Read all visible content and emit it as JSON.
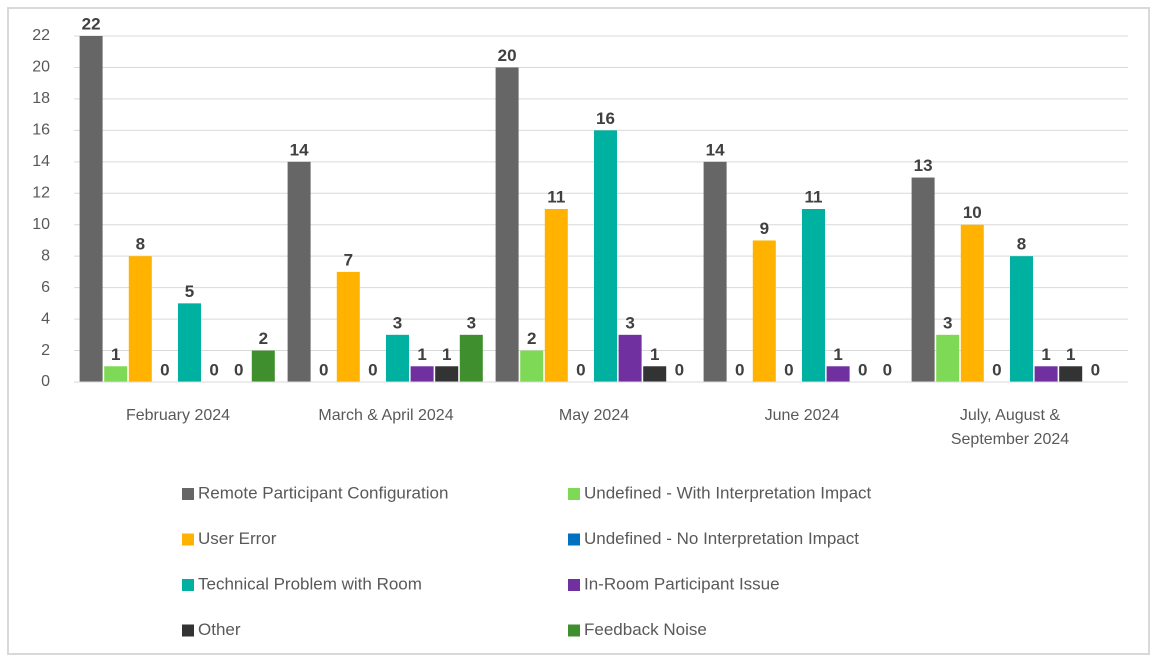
{
  "chart_data": {
    "type": "bar",
    "categories": [
      "February 2024",
      "March & April 2024",
      "May 2024",
      "June 2024",
      "July, August & September 2024"
    ],
    "series": [
      {
        "name": "Remote Participant Configuration",
        "color": "#666666",
        "values": [
          22,
          14,
          20,
          14,
          13
        ]
      },
      {
        "name": "Undefined - With Interpretation Impact",
        "color": "#7ed957",
        "values": [
          1,
          0,
          2,
          0,
          3
        ]
      },
      {
        "name": "User Error",
        "color": "#ffb300",
        "values": [
          8,
          7,
          11,
          9,
          10
        ]
      },
      {
        "name": "Undefined - No Interpretation Impact",
        "color": "#0070c0",
        "values": [
          0,
          0,
          0,
          0,
          0
        ]
      },
      {
        "name": "Technical Problem with Room",
        "color": "#00b0a0",
        "values": [
          5,
          3,
          16,
          11,
          8
        ]
      },
      {
        "name": "In-Room Participant Issue",
        "color": "#7030a0",
        "values": [
          0,
          1,
          3,
          1,
          1
        ]
      },
      {
        "name": "Other",
        "color": "#333333",
        "values": [
          0,
          1,
          1,
          0,
          1
        ]
      },
      {
        "name": "Feedback Noise",
        "color": "#3f8f2f",
        "values": [
          2,
          3,
          0,
          0,
          0
        ]
      }
    ],
    "ylim": [
      0,
      22
    ],
    "yticks": [
      0,
      2,
      4,
      6,
      8,
      10,
      12,
      14,
      16,
      18,
      20,
      22
    ],
    "grid": true,
    "data_labels": true
  }
}
